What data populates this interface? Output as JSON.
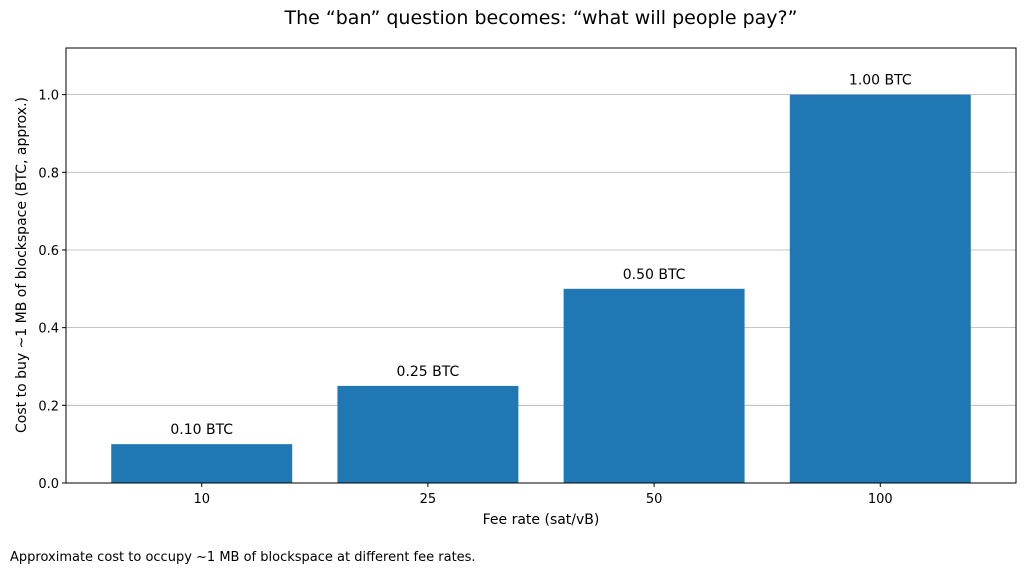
{
  "chart_data": {
    "type": "bar",
    "title": "The “ban” question becomes: “what will people pay?”",
    "xlabel": "Fee rate (sat/vB)",
    "ylabel": "Cost to buy ~1 MB of blockspace (BTC, approx.)",
    "categories": [
      "10",
      "25",
      "50",
      "100"
    ],
    "values": [
      0.1,
      0.25,
      0.5,
      1.0
    ],
    "data_labels": [
      "0.10 BTC",
      "0.25 BTC",
      "0.50 BTC",
      "1.00 BTC"
    ],
    "ylim": [
      0,
      1.12
    ],
    "yticks": [
      "0.0",
      "0.2",
      "0.4",
      "0.6",
      "0.8",
      "1.0"
    ],
    "grid": "horizontal",
    "bar_color": "#1f77b4"
  },
  "caption": "Approximate cost to occupy ~1 MB of blockspace at different fee rates."
}
